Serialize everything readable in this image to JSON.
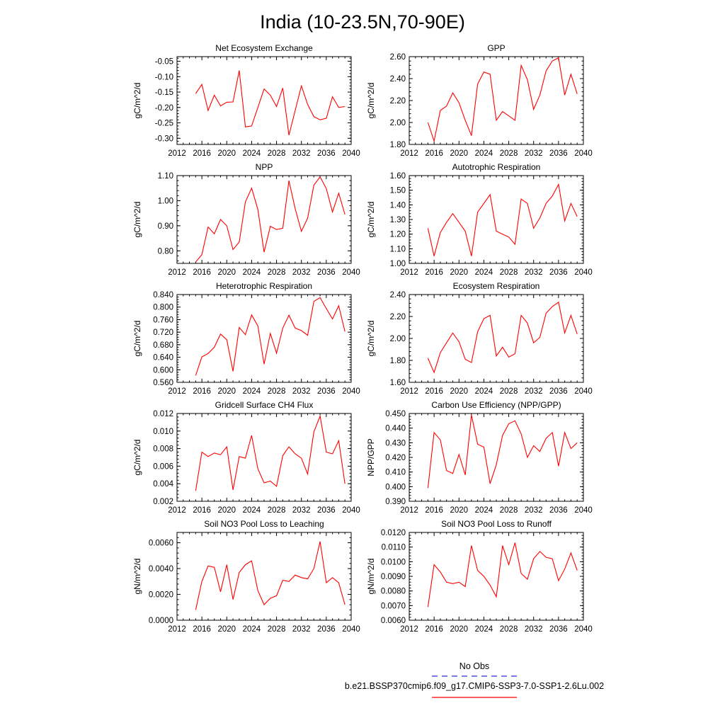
{
  "figure": {
    "title": "India (10-23.5N,70-90E)"
  },
  "legend": {
    "entries": [
      {
        "label": "No Obs",
        "color": "#2a2ad8",
        "style": "dashed"
      },
      {
        "label": "b.e21.BSSP370cmip6.f09_g17.CMIP6-SSP3-7.0-SSP1-2.6Lu.002",
        "color": "#ff0000",
        "style": "solid"
      }
    ]
  },
  "colors": {
    "series": "#ff0000",
    "axis": "#000000"
  },
  "chart_data": [
    {
      "type": "line",
      "title": "Net Ecosystem Exchange",
      "ylabel": "gC/m^2/d",
      "xlabel": "",
      "xlim": [
        2012,
        2040
      ],
      "xticks": [
        "2012",
        "2016",
        "2020",
        "2024",
        "2028",
        "2032",
        "2036",
        "2040"
      ],
      "ylim": [
        -0.32,
        -0.035
      ],
      "yticks": [
        "-0.05",
        "-0.10",
        "-0.15",
        "-0.20",
        "-0.25",
        "-0.30"
      ],
      "ytick_values": [
        -0.05,
        -0.1,
        -0.15,
        -0.2,
        -0.25,
        -0.3
      ],
      "x": [
        2015,
        2016,
        2017,
        2018,
        2019,
        2020,
        2021,
        2022,
        2023,
        2024,
        2025,
        2026,
        2027,
        2028,
        2029,
        2030,
        2031,
        2032,
        2033,
        2034,
        2035,
        2036,
        2037,
        2038,
        2039
      ],
      "y": [
        -0.155,
        -0.125,
        -0.21,
        -0.16,
        -0.195,
        -0.183,
        -0.182,
        -0.08,
        -0.263,
        -0.26,
        -0.2,
        -0.14,
        -0.16,
        -0.197,
        -0.137,
        -0.29,
        -0.21,
        -0.13,
        -0.19,
        -0.23,
        -0.24,
        -0.235,
        -0.165,
        -0.2,
        -0.197
      ]
    },
    {
      "type": "line",
      "title": "GPP",
      "ylabel": "gC/m^2/d",
      "xlabel": "",
      "xlim": [
        2012,
        2040
      ],
      "xticks": [
        "2012",
        "2016",
        "2020",
        "2024",
        "2028",
        "2032",
        "2036",
        "2040"
      ],
      "ylim": [
        1.8,
        2.6
      ],
      "yticks": [
        "1.80",
        "2.00",
        "2.20",
        "2.40",
        "2.60"
      ],
      "ytick_values": [
        1.8,
        2.0,
        2.2,
        2.4,
        2.6
      ],
      "x": [
        2015,
        2016,
        2017,
        2018,
        2019,
        2020,
        2021,
        2022,
        2023,
        2024,
        2025,
        2026,
        2027,
        2028,
        2029,
        2030,
        2031,
        2032,
        2033,
        2034,
        2035,
        2036,
        2037,
        2038,
        2039
      ],
      "y": [
        2.0,
        1.83,
        2.11,
        2.15,
        2.27,
        2.18,
        2.02,
        1.88,
        2.35,
        2.46,
        2.44,
        2.02,
        2.1,
        2.06,
        2.02,
        2.52,
        2.39,
        2.12,
        2.25,
        2.47,
        2.56,
        2.59,
        2.25,
        2.44,
        2.26
      ]
    },
    {
      "type": "line",
      "title": "NPP",
      "ylabel": "gC/m^2/d",
      "xlabel": "",
      "xlim": [
        2012,
        2040
      ],
      "xticks": [
        "2012",
        "2016",
        "2020",
        "2024",
        "2028",
        "2032",
        "2036",
        "2040"
      ],
      "ylim": [
        0.75,
        1.1
      ],
      "yticks": [
        "0.80",
        "0.90",
        "1.00",
        "1.10"
      ],
      "ytick_values": [
        0.8,
        0.9,
        1.0,
        1.1
      ],
      "x": [
        2015,
        2016,
        2017,
        2018,
        2019,
        2020,
        2021,
        2022,
        2023,
        2024,
        2025,
        2026,
        2027,
        2028,
        2029,
        2030,
        2031,
        2032,
        2033,
        2034,
        2035,
        2036,
        2037,
        2038,
        2039
      ],
      "y": [
        0.755,
        0.785,
        0.895,
        0.868,
        0.925,
        0.9,
        0.805,
        0.835,
        0.995,
        1.05,
        0.965,
        0.795,
        0.898,
        0.885,
        0.89,
        1.08,
        0.968,
        0.878,
        0.93,
        1.062,
        1.095,
        1.048,
        0.955,
        1.03,
        0.945
      ]
    },
    {
      "type": "line",
      "title": "Autotrophic Respiration",
      "ylabel": "gC/m^2/d",
      "xlabel": "",
      "xlim": [
        2012,
        2040
      ],
      "xticks": [
        "2012",
        "2016",
        "2020",
        "2024",
        "2028",
        "2032",
        "2036",
        "2040"
      ],
      "ylim": [
        1.0,
        1.6
      ],
      "yticks": [
        "1.00",
        "1.10",
        "1.20",
        "1.30",
        "1.40",
        "1.50",
        "1.60"
      ],
      "ytick_values": [
        1.0,
        1.1,
        1.2,
        1.3,
        1.4,
        1.5,
        1.6
      ],
      "x": [
        2015,
        2016,
        2017,
        2018,
        2019,
        2020,
        2021,
        2022,
        2023,
        2024,
        2025,
        2026,
        2027,
        2028,
        2029,
        2030,
        2031,
        2032,
        2033,
        2034,
        2035,
        2036,
        2037,
        2038,
        2039
      ],
      "y": [
        1.24,
        1.05,
        1.21,
        1.28,
        1.34,
        1.28,
        1.22,
        1.05,
        1.35,
        1.41,
        1.47,
        1.22,
        1.2,
        1.18,
        1.13,
        1.44,
        1.41,
        1.24,
        1.31,
        1.41,
        1.46,
        1.54,
        1.29,
        1.41,
        1.32
      ]
    },
    {
      "type": "line",
      "title": "Heterotrophic Respiration",
      "ylabel": "gC/m^2/d",
      "xlabel": "",
      "xlim": [
        2012,
        2040
      ],
      "xticks": [
        "2012",
        "2016",
        "2020",
        "2024",
        "2028",
        "2032",
        "2036",
        "2040"
      ],
      "ylim": [
        0.56,
        0.84
      ],
      "yticks": [
        "0.560",
        "0.600",
        "0.640",
        "0.680",
        "0.720",
        "0.760",
        "0.800",
        "0.840"
      ],
      "ytick_values": [
        0.56,
        0.6,
        0.64,
        0.68,
        0.72,
        0.76,
        0.8,
        0.84
      ],
      "x": [
        2015,
        2016,
        2017,
        2018,
        2019,
        2020,
        2021,
        2022,
        2023,
        2024,
        2025,
        2026,
        2027,
        2028,
        2029,
        2030,
        2031,
        2032,
        2033,
        2034,
        2035,
        2036,
        2037,
        2038,
        2039
      ],
      "y": [
        0.582,
        0.641,
        0.652,
        0.672,
        0.714,
        0.696,
        0.595,
        0.735,
        0.712,
        0.775,
        0.74,
        0.618,
        0.716,
        0.653,
        0.733,
        0.774,
        0.733,
        0.725,
        0.71,
        0.818,
        0.83,
        0.795,
        0.762,
        0.804,
        0.722
      ]
    },
    {
      "type": "line",
      "title": "Ecosystem Respiration",
      "ylabel": "gC/m^2/d",
      "xlabel": "",
      "xlim": [
        2012,
        2040
      ],
      "xticks": [
        "2012",
        "2016",
        "2020",
        "2024",
        "2028",
        "2032",
        "2036",
        "2040"
      ],
      "ylim": [
        1.6,
        2.4
      ],
      "yticks": [
        "1.60",
        "1.80",
        "2.00",
        "2.20",
        "2.40"
      ],
      "ytick_values": [
        1.6,
        1.8,
        2.0,
        2.2,
        2.4
      ],
      "x": [
        2015,
        2016,
        2017,
        2018,
        2019,
        2020,
        2021,
        2022,
        2023,
        2024,
        2025,
        2026,
        2027,
        2028,
        2029,
        2030,
        2031,
        2032,
        2033,
        2034,
        2035,
        2036,
        2037,
        2038,
        2039
      ],
      "y": [
        1.82,
        1.69,
        1.87,
        1.96,
        2.05,
        1.97,
        1.81,
        1.78,
        2.06,
        2.18,
        2.21,
        1.84,
        1.92,
        1.83,
        1.86,
        2.21,
        2.14,
        1.96,
        2.01,
        2.23,
        2.29,
        2.33,
        2.05,
        2.21,
        2.04
      ]
    },
    {
      "type": "line",
      "title": "Gridcell Surface CH4 Flux",
      "ylabel": "gC/m^2/d",
      "xlabel": "",
      "xlim": [
        2012,
        2040
      ],
      "xticks": [
        "2012",
        "2016",
        "2020",
        "2024",
        "2028",
        "2032",
        "2036",
        "2040"
      ],
      "ylim": [
        0.002,
        0.012
      ],
      "yticks": [
        "0.002",
        "0.004",
        "0.006",
        "0.008",
        "0.010",
        "0.012"
      ],
      "ytick_values": [
        0.002,
        0.004,
        0.006,
        0.008,
        0.01,
        0.012
      ],
      "x": [
        2015,
        2016,
        2017,
        2018,
        2019,
        2020,
        2021,
        2022,
        2023,
        2024,
        2025,
        2026,
        2027,
        2028,
        2029,
        2030,
        2031,
        2032,
        2033,
        2034,
        2035,
        2036,
        2037,
        2038,
        2039
      ],
      "y": [
        0.0032,
        0.0076,
        0.0071,
        0.0075,
        0.0073,
        0.0082,
        0.0033,
        0.0071,
        0.0069,
        0.0095,
        0.0057,
        0.0041,
        0.0043,
        0.0037,
        0.0072,
        0.0082,
        0.0074,
        0.0069,
        0.0051,
        0.0099,
        0.0117,
        0.0076,
        0.0074,
        0.0089,
        0.004
      ]
    },
    {
      "type": "line",
      "title": "Carbon Use Efficiency (NPP/GPP)",
      "ylabel": "NPP/GPP",
      "xlabel": "",
      "xlim": [
        2012,
        2040
      ],
      "xticks": [
        "2012",
        "2016",
        "2020",
        "2024",
        "2028",
        "2032",
        "2036",
        "2040"
      ],
      "ylim": [
        0.39,
        0.45
      ],
      "yticks": [
        "0.390",
        "0.400",
        "0.410",
        "0.420",
        "0.430",
        "0.440",
        "0.450"
      ],
      "ytick_values": [
        0.39,
        0.4,
        0.41,
        0.42,
        0.43,
        0.44,
        0.45
      ],
      "x": [
        2015,
        2016,
        2017,
        2018,
        2019,
        2020,
        2021,
        2022,
        2023,
        2024,
        2025,
        2026,
        2027,
        2028,
        2029,
        2030,
        2031,
        2032,
        2033,
        2034,
        2035,
        2036,
        2037,
        2038,
        2039
      ],
      "y": [
        0.399,
        0.437,
        0.432,
        0.411,
        0.409,
        0.422,
        0.408,
        0.449,
        0.429,
        0.427,
        0.402,
        0.415,
        0.435,
        0.443,
        0.445,
        0.436,
        0.42,
        0.428,
        0.424,
        0.433,
        0.437,
        0.414,
        0.437,
        0.426,
        0.43
      ]
    },
    {
      "type": "line",
      "title": "Soil NO3 Pool Loss to Leaching",
      "ylabel": "gN/m^2/d",
      "xlabel": "",
      "xlim": [
        2012,
        2040
      ],
      "xticks": [
        "2012",
        "2016",
        "2020",
        "2024",
        "2028",
        "2032",
        "2036",
        "2040"
      ],
      "ylim": [
        0.0,
        0.0068
      ],
      "yticks": [
        "0.0000",
        "0.0020",
        "0.0040",
        "0.0060"
      ],
      "ytick_values": [
        0.0,
        0.002,
        0.004,
        0.006
      ],
      "x": [
        2015,
        2016,
        2017,
        2018,
        2019,
        2020,
        2021,
        2022,
        2023,
        2024,
        2025,
        2026,
        2027,
        2028,
        2029,
        2030,
        2031,
        2032,
        2033,
        2034,
        2035,
        2036,
        2037,
        2038,
        2039
      ],
      "y": [
        0.0008,
        0.003,
        0.0042,
        0.0041,
        0.0022,
        0.0043,
        0.0016,
        0.0037,
        0.0043,
        0.0046,
        0.0023,
        0.0012,
        0.0017,
        0.0019,
        0.0031,
        0.003,
        0.0035,
        0.0033,
        0.0032,
        0.004,
        0.0061,
        0.0029,
        0.0033,
        0.0029,
        0.0012
      ]
    },
    {
      "type": "line",
      "title": "Soil NO3 Pool Loss to Runoff",
      "ylabel": "gN/m^2/d",
      "xlabel": "",
      "xlim": [
        2012,
        2040
      ],
      "xticks": [
        "2012",
        "2016",
        "2020",
        "2024",
        "2028",
        "2032",
        "2036",
        "2040"
      ],
      "ylim": [
        0.006,
        0.012
      ],
      "yticks": [
        "0.0060",
        "0.0070",
        "0.0080",
        "0.0090",
        "0.0100",
        "0.0110",
        "0.0120"
      ],
      "ytick_values": [
        0.006,
        0.007,
        0.008,
        0.009,
        0.01,
        0.011,
        0.012
      ],
      "x": [
        2015,
        2016,
        2017,
        2018,
        2019,
        2020,
        2021,
        2022,
        2023,
        2024,
        2025,
        2026,
        2027,
        2028,
        2029,
        2030,
        2031,
        2032,
        2033,
        2034,
        2035,
        2036,
        2037,
        2038,
        2039
      ],
      "y": [
        0.0069,
        0.0098,
        0.0093,
        0.0086,
        0.0085,
        0.0086,
        0.0083,
        0.0111,
        0.0094,
        0.009,
        0.0084,
        0.0076,
        0.0111,
        0.0098,
        0.0113,
        0.0092,
        0.0088,
        0.0102,
        0.0107,
        0.0103,
        0.0102,
        0.0087,
        0.0095,
        0.0106,
        0.0094
      ]
    }
  ]
}
